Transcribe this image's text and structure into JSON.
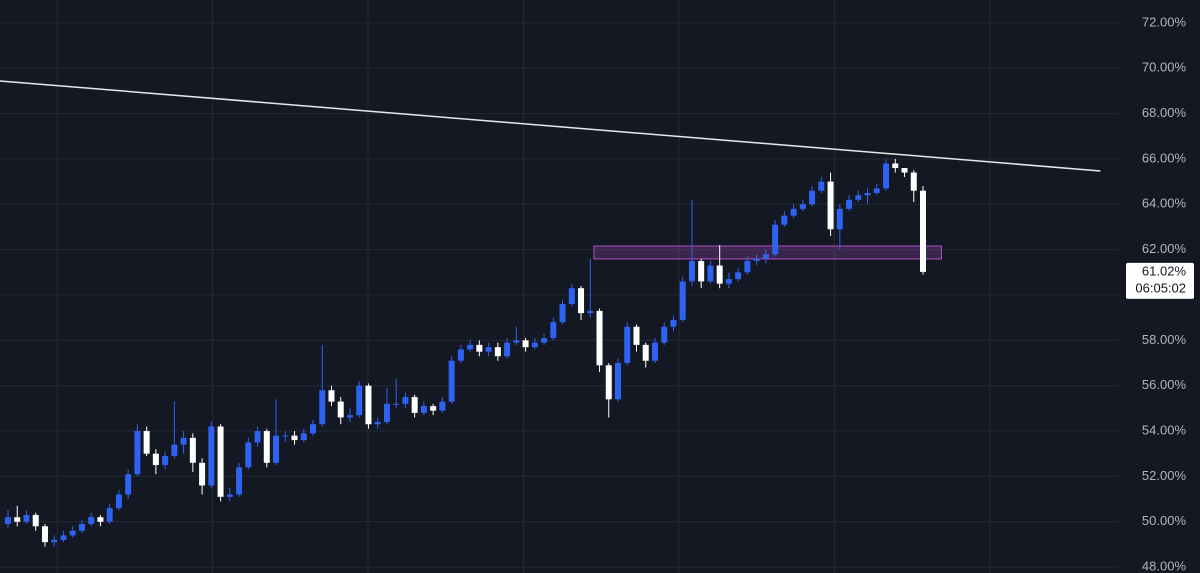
{
  "chart_data": {
    "type": "candlestick",
    "up_color": "#2e62f0",
    "down_color": "#ffffff",
    "ylim": [
      47.74,
      73.01
    ],
    "yticks": [
      {
        "value": 48,
        "label": "48.00%"
      },
      {
        "value": 50,
        "label": "50.00%"
      },
      {
        "value": 52,
        "label": "52.00%"
      },
      {
        "value": 54,
        "label": "54.00%"
      },
      {
        "value": 56,
        "label": "56.00%"
      },
      {
        "value": 58,
        "label": "58.00%"
      },
      {
        "value": 60,
        "label": "60.00%"
      },
      {
        "value": 62,
        "label": "62.00%"
      },
      {
        "value": 64,
        "label": "64.00%"
      },
      {
        "value": 66,
        "label": "66.00%"
      },
      {
        "value": 68,
        "label": "68.00%"
      },
      {
        "value": 70,
        "label": "70.00%"
      },
      {
        "value": 72,
        "label": "72.00%"
      }
    ],
    "grid": true,
    "open": [
      49.9,
      50.2,
      50.0,
      50.3,
      49.8,
      49.1,
      49.2,
      49.4,
      49.6,
      49.9,
      50.2,
      50.0,
      50.6,
      51.2,
      52.1,
      54.0,
      53.0,
      52.5,
      52.9,
      53.4,
      53.7,
      52.6,
      51.6,
      54.2,
      51.1,
      51.2,
      52.4,
      53.5,
      54.0,
      52.6,
      53.8,
      53.8,
      53.6,
      53.9,
      54.3,
      55.8,
      55.3,
      54.6,
      54.7,
      56.0,
      54.3,
      54.4,
      55.2,
      55.2,
      55.5,
      54.8,
      55.1,
      54.9,
      55.3,
      57.1,
      57.6,
      57.8,
      57.5,
      57.7,
      57.3,
      57.9,
      58.0,
      57.7,
      57.9,
      58.1,
      58.8,
      59.6,
      60.3,
      59.2,
      59.3,
      56.9,
      55.4,
      57.0,
      58.6,
      57.8,
      57.1,
      57.9,
      58.6,
      58.9,
      60.6,
      61.5,
      60.6,
      61.3,
      60.5,
      60.7,
      61.0,
      61.5,
      61.6,
      61.8,
      63.1,
      63.5,
      63.8,
      64.0,
      64.6,
      65.0,
      62.9,
      63.8,
      64.2,
      64.4,
      64.5,
      64.7,
      65.8,
      65.6,
      65.4,
      64.6
    ],
    "high": [
      50.5,
      50.7,
      50.5,
      50.4,
      49.9,
      49.4,
      49.6,
      49.8,
      50.1,
      50.4,
      50.3,
      50.8,
      51.4,
      52.3,
      54.3,
      54.2,
      53.2,
      53.1,
      55.3,
      54.0,
      53.9,
      52.8,
      54.4,
      54.3,
      51.5,
      52.6,
      53.7,
      54.2,
      54.1,
      55.4,
      54.0,
      54.0,
      54.1,
      54.5,
      57.8,
      56.0,
      55.5,
      55.0,
      56.2,
      56.1,
      54.6,
      55.9,
      56.3,
      55.7,
      55.6,
      55.3,
      55.2,
      55.5,
      57.3,
      57.8,
      58.0,
      58.0,
      57.9,
      57.9,
      58.1,
      58.6,
      58.1,
      58.1,
      58.3,
      59.0,
      59.8,
      60.5,
      60.4,
      61.6,
      59.4,
      57.0,
      57.2,
      58.8,
      58.7,
      57.9,
      58.1,
      58.8,
      59.1,
      60.8,
      64.2,
      61.6,
      61.5,
      62.2,
      61.0,
      61.2,
      61.7,
      61.8,
      62.0,
      63.3,
      63.7,
      64.0,
      64.2,
      64.8,
      65.2,
      65.4,
      64.0,
      64.4,
      64.6,
      64.7,
      64.9,
      66.0,
      66.0,
      65.6,
      65.5,
      64.8
    ],
    "low": [
      49.7,
      49.8,
      49.9,
      49.6,
      48.9,
      48.9,
      49.1,
      49.3,
      49.5,
      49.8,
      49.8,
      49.9,
      50.5,
      51.0,
      52.0,
      52.9,
      52.1,
      52.3,
      52.8,
      53.0,
      52.2,
      51.2,
      51.5,
      50.9,
      50.9,
      51.1,
      52.3,
      53.3,
      52.4,
      52.5,
      53.5,
      53.4,
      53.5,
      53.8,
      54.2,
      55.1,
      54.3,
      54.4,
      54.6,
      54.1,
      54.1,
      54.3,
      55.0,
      55.0,
      54.6,
      54.7,
      54.7,
      54.8,
      55.2,
      57.0,
      57.5,
      57.3,
      57.3,
      57.1,
      57.2,
      57.8,
      57.5,
      57.6,
      57.8,
      58.0,
      58.7,
      59.5,
      58.9,
      59.0,
      56.6,
      54.6,
      55.3,
      56.9,
      57.5,
      56.8,
      57.0,
      57.8,
      58.4,
      58.8,
      60.4,
      60.3,
      60.5,
      60.3,
      60.3,
      60.6,
      60.9,
      61.3,
      61.4,
      61.7,
      63.0,
      63.4,
      63.7,
      63.9,
      64.5,
      62.6,
      62.0,
      63.7,
      64.1,
      64.0,
      64.4,
      64.6,
      65.4,
      65.2,
      64.1,
      60.9
    ],
    "close": [
      50.2,
      50.0,
      50.3,
      49.8,
      49.1,
      49.2,
      49.4,
      49.6,
      49.9,
      50.2,
      50.0,
      50.6,
      51.2,
      52.1,
      54.0,
      53.0,
      52.5,
      52.9,
      53.4,
      53.7,
      52.6,
      51.6,
      54.2,
      51.1,
      51.2,
      52.4,
      53.5,
      54.0,
      52.6,
      53.8,
      53.8,
      53.6,
      53.9,
      54.3,
      55.8,
      55.3,
      54.6,
      54.7,
      56.0,
      54.3,
      54.4,
      55.2,
      55.2,
      55.5,
      54.8,
      55.1,
      54.9,
      55.3,
      57.1,
      57.6,
      57.8,
      57.5,
      57.7,
      57.3,
      57.9,
      58.0,
      57.7,
      57.9,
      58.1,
      58.8,
      59.6,
      60.3,
      59.2,
      59.3,
      56.9,
      55.4,
      57.0,
      58.6,
      57.8,
      57.1,
      57.9,
      58.6,
      58.9,
      60.6,
      61.5,
      60.6,
      61.3,
      60.5,
      60.7,
      61.0,
      61.5,
      61.6,
      61.8,
      63.1,
      63.5,
      63.8,
      64.0,
      64.6,
      65.0,
      62.9,
      63.8,
      64.2,
      64.4,
      64.5,
      64.7,
      65.8,
      65.6,
      65.4,
      64.6,
      61.02
    ],
    "trendline": {
      "color": "#e8e8ec",
      "x": [
        -0.87,
        118.2
      ],
      "y": [
        69.44,
        65.47
      ]
    },
    "zone": {
      "color": "#b04fc8",
      "x": [
        63.4,
        101.0
      ],
      "y": [
        61.59,
        62.16
      ]
    },
    "price_marker": {
      "value": 61.02,
      "label": "61.02%",
      "countdown": "06:05:02"
    }
  }
}
